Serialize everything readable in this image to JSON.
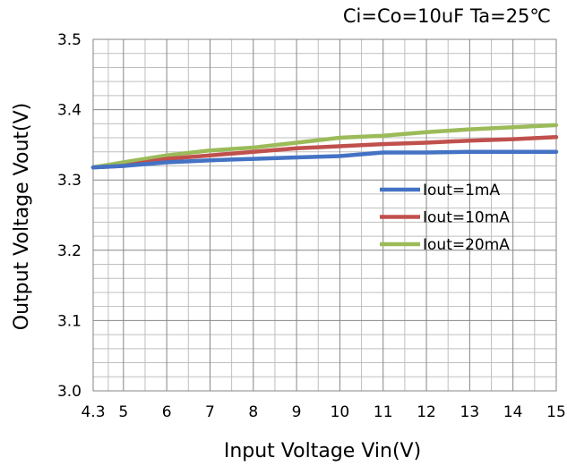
{
  "chart_data": {
    "type": "line",
    "title": "",
    "conditions": "Ci=Co=10uF    Ta=25℃",
    "xlabel": "Input Voltage    Vin(V)",
    "ylabel": "Output Voltage    Vout(V)",
    "xlim": [
      4.3,
      15
    ],
    "ylim": [
      3.0,
      3.5
    ],
    "x_ticks": [
      "4.3",
      "5",
      "6",
      "7",
      "8",
      "9",
      "10",
      "11",
      "12",
      "13",
      "14",
      "15"
    ],
    "y_ticks": [
      "3.0",
      "3.1",
      "3.2",
      "3.3",
      "3.4",
      "3.5"
    ],
    "grid": true,
    "legend_position": "right",
    "series": [
      {
        "name": "Iout=1mA",
        "color": "#4472C4",
        "x": [
          4.3,
          5,
          6,
          7,
          8,
          9,
          10,
          11,
          12,
          13,
          14,
          15
        ],
        "y": [
          3.318,
          3.32,
          3.325,
          3.328,
          3.33,
          3.332,
          3.334,
          3.339,
          3.339,
          3.34,
          3.34,
          3.34
        ]
      },
      {
        "name": "Iout=10mA",
        "color": "#C0504D",
        "x": [
          4.3,
          5,
          6,
          7,
          8,
          9,
          10,
          11,
          12,
          13,
          14,
          15
        ],
        "y": [
          3.318,
          3.32,
          3.33,
          3.335,
          3.34,
          3.345,
          3.348,
          3.351,
          3.353,
          3.356,
          3.358,
          3.361
        ]
      },
      {
        "name": "Iout=20mA",
        "color": "#9BBB59",
        "x": [
          4.3,
          5,
          6,
          7,
          8,
          9,
          10,
          11,
          12,
          13,
          14,
          15
        ],
        "y": [
          3.318,
          3.325,
          3.335,
          3.342,
          3.346,
          3.353,
          3.36,
          3.363,
          3.368,
          3.372,
          3.375,
          3.378
        ]
      }
    ]
  }
}
